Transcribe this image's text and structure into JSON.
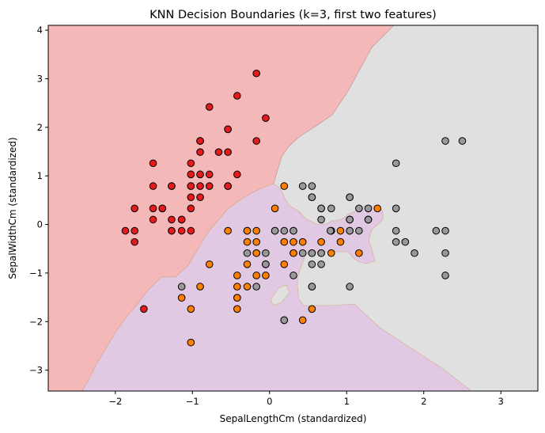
{
  "chart_data": {
    "type": "scatter",
    "title": "KNN Decision Boundaries (k=3, first two features)",
    "xlabel": "SepalLengthCm (standardized)",
    "ylabel": "SepalWidthCm (standardized)",
    "xlim": [
      -2.87,
      3.48
    ],
    "ylim": [
      -3.43,
      4.1
    ],
    "xticks": [
      -2,
      -1,
      0,
      1,
      2,
      3
    ],
    "yticks": [
      -3,
      -2,
      -1,
      0,
      1,
      2,
      3,
      4
    ],
    "xtick_labels": [
      "−2",
      "−1",
      "0",
      "1",
      "2",
      "3"
    ],
    "ytick_labels": [
      "−3",
      "−2",
      "−1",
      "0",
      "1",
      "2",
      "3",
      "4"
    ],
    "grid": false,
    "colors": {
      "class0_point": "#e41a1c",
      "class1_point": "#ff7f00",
      "class2_point": "#999999",
      "class0_region": "#f5b8b9",
      "class1_region": "#e2c9e3",
      "class2_region": "#e0e0e0"
    },
    "series": [
      {
        "x": [
          -0.9,
          -1.14,
          -1.39,
          -1.51,
          -1.02,
          -0.54,
          -1.51,
          -1.02,
          -1.75,
          -1.14,
          -0.54,
          -1.27,
          -1.27,
          -1.87,
          -0.05,
          -0.17,
          -0.54,
          -0.9,
          -0.17,
          -0.9,
          -0.54,
          -0.9,
          -1.51,
          -0.9,
          -1.27,
          -1.02,
          -1.02,
          -0.78,
          -0.78,
          -1.39,
          -1.27,
          -0.54,
          -0.78,
          -0.42,
          -1.14,
          -1.02,
          -0.42,
          -1.14,
          -1.75,
          -0.9,
          -1.02,
          -1.63,
          -1.75,
          -1.02,
          -0.9,
          -1.27,
          -0.9,
          -1.51,
          -0.66,
          -1.02
        ],
        "y": [
          1.03,
          -0.13,
          0.33,
          0.1,
          1.26,
          1.96,
          0.79,
          0.79,
          -0.36,
          0.1,
          1.49,
          0.79,
          -0.13,
          -0.13,
          2.19,
          3.11,
          1.96,
          1.03,
          1.72,
          1.72,
          0.79,
          1.49,
          1.26,
          0.56,
          0.79,
          -0.13,
          0.79,
          1.03,
          0.79,
          0.33,
          0.1,
          0.79,
          2.42,
          2.65,
          0.1,
          0.33,
          1.03,
          0.1,
          -0.13,
          0.79,
          1.03,
          -1.74,
          0.33,
          1.03,
          1.72,
          -0.13,
          1.72,
          0.33,
          1.49,
          0.56
        ]
      },
      {
        "x": [
          1.4,
          0.67,
          1.28,
          -0.42,
          0.8,
          -0.17,
          0.55,
          -1.14,
          0.92,
          -0.78,
          -1.02,
          0.07,
          0.19,
          0.31,
          -0.29,
          1.04,
          -0.29,
          -0.05,
          0.43,
          -0.29,
          0.07,
          0.31,
          0.55,
          0.31,
          0.67,
          0.92,
          1.16,
          1.04,
          0.19,
          -0.17,
          -0.42,
          -0.42,
          -0.05,
          0.19,
          -0.54,
          0.19,
          1.04,
          0.55,
          -0.29,
          -0.42,
          -0.42,
          0.31,
          -0.05,
          -1.02,
          -0.29,
          -0.17,
          -0.17,
          0.43,
          -0.9,
          -0.17
        ],
        "y": [
          0.33,
          0.33,
          0.1,
          -1.74,
          -0.59,
          -0.59,
          0.56,
          -1.51,
          -0.36,
          -0.82,
          -2.43,
          -0.13,
          -1.97,
          -0.36,
          -0.36,
          0.1,
          -0.13,
          -0.82,
          -1.97,
          -1.28,
          0.33,
          -0.59,
          -1.28,
          -0.59,
          -0.36,
          -0.13,
          -0.59,
          -0.13,
          -0.36,
          -1.05,
          -1.51,
          -1.51,
          -0.82,
          -0.82,
          -0.13,
          0.79,
          0.1,
          -1.74,
          -0.13,
          -1.28,
          -1.05,
          -0.13,
          -1.05,
          -1.74,
          -0.82,
          -0.13,
          -0.36,
          -0.36,
          -1.28,
          -0.59
        ]
      },
      {
        "x": [
          0.55,
          -0.05,
          1.64,
          0.55,
          0.8,
          2.16,
          -1.14,
          1.76,
          1.04,
          1.64,
          0.8,
          0.67,
          1.16,
          -0.17,
          -0.05,
          0.67,
          0.8,
          2.28,
          2.28,
          0.19,
          1.28,
          -0.29,
          2.28,
          0.55,
          1.04,
          1.64,
          0.43,
          0.31,
          0.67,
          1.64,
          1.88,
          2.5,
          0.67,
          0.55,
          0.31,
          2.28,
          0.55,
          0.67,
          0.19,
          1.28,
          1.04,
          1.28,
          -0.05,
          1.16,
          1.04,
          1.04,
          0.55,
          0.79,
          0.43,
          0.07
        ],
        "y": [
          0.56,
          -0.82,
          -0.36,
          -0.59,
          -0.13,
          -0.13,
          -1.28,
          -0.36,
          -1.28,
          1.26,
          0.33,
          -0.82,
          -0.13,
          -1.28,
          -0.59,
          0.33,
          -0.13,
          1.72,
          -1.05,
          -1.97,
          0.33,
          -0.59,
          -0.59,
          -0.82,
          0.56,
          0.33,
          -0.59,
          -0.13,
          -0.59,
          -0.13,
          -0.59,
          1.72,
          -0.59,
          -0.59,
          -1.05,
          -0.13,
          0.79,
          0.1,
          -0.13,
          0.1,
          0.1,
          0.1,
          -0.82,
          0.33,
          0.56,
          -0.13,
          -1.28,
          -0.13,
          0.79,
          -0.13
        ]
      }
    ]
  }
}
